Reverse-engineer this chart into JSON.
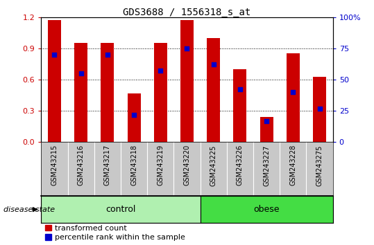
{
  "title": "GDS3688 / 1556318_s_at",
  "samples": [
    "GSM243215",
    "GSM243216",
    "GSM243217",
    "GSM243218",
    "GSM243219",
    "GSM243220",
    "GSM243225",
    "GSM243226",
    "GSM243227",
    "GSM243228",
    "GSM243275"
  ],
  "transformed_count": [
    1.17,
    0.95,
    0.95,
    0.47,
    0.95,
    1.17,
    1.0,
    0.7,
    0.24,
    0.85,
    0.63
  ],
  "percentile_rank": [
    70,
    55,
    70,
    22,
    57,
    75,
    62,
    42,
    17,
    40,
    27
  ],
  "control_count": 6,
  "obese_count": 5,
  "bar_color": "#CC0000",
  "dot_color": "#0000CC",
  "bar_width": 0.5,
  "ylim_left": [
    0,
    1.2
  ],
  "ylim_right": [
    0,
    100
  ],
  "yticks_left": [
    0,
    0.3,
    0.6,
    0.9,
    1.2
  ],
  "yticks_right": [
    0,
    25,
    50,
    75,
    100
  ],
  "left_tick_color": "#CC0000",
  "right_tick_color": "#0000CC",
  "tick_bg": "#c8c8c8",
  "control_color": "#b0f0b0",
  "obese_color": "#44dd44",
  "legend_labels": [
    "transformed count",
    "percentile rank within the sample"
  ],
  "legend_colors": [
    "#CC0000",
    "#0000CC"
  ],
  "disease_state_label": "disease state",
  "title_fontsize": 10,
  "tick_label_fontsize": 7,
  "group_label_fontsize": 9,
  "legend_fontsize": 8
}
